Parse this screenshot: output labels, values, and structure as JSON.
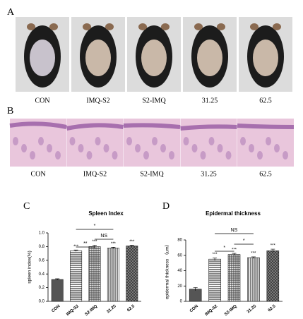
{
  "panel_a": {
    "label": "A",
    "groups": [
      "CON",
      "IMQ-S2",
      "S2-IMQ",
      "31.25",
      "62.5"
    ]
  },
  "panel_b": {
    "label": "B",
    "groups": [
      "CON",
      "IMQ-S2",
      "S2-IMQ",
      "31.25",
      "62.5"
    ]
  },
  "chart_data": [
    {
      "type": "bar",
      "panel": "C",
      "title": "Spleen Index",
      "ylabel": "spleen index(%)",
      "categories": [
        "CON",
        "IMQ-S2",
        "S2-IMQ",
        "31.25",
        "62.5"
      ],
      "values": [
        0.32,
        0.74,
        0.8,
        0.78,
        0.81
      ],
      "errors": [
        0.01,
        0.01,
        0.02,
        0.01,
        0.01
      ],
      "bar_labels": [
        null,
        "***",
        "***",
        "***",
        "***"
      ],
      "brackets": [
        {
          "label": "**"
        },
        {
          "label": "NS"
        },
        {
          "label": "*"
        }
      ],
      "color": "#555555",
      "ylim": [
        0,
        1.0
      ],
      "yticks": [
        {
          "value": 0,
          "label": "0.0"
        },
        {
          "value": 0.2,
          "label": "0.2"
        },
        {
          "value": 0.4,
          "label": "0.4"
        },
        {
          "value": 0.6,
          "label": "0.6"
        },
        {
          "value": 0.8,
          "label": "0.8"
        },
        {
          "value": 1.0,
          "label": "1.0"
        }
      ]
    },
    {
      "type": "bar",
      "panel": "D",
      "title": "Epidermal thickness",
      "ylabel": "epidermal thickness （um）",
      "categories": [
        "CON",
        "IMQ-S2",
        "S2-IMQ",
        "31.25",
        "62.5"
      ],
      "values": [
        16,
        55,
        61,
        57,
        66
      ],
      "errors": [
        2,
        1.5,
        1.5,
        1,
        2
      ],
      "bar_labels": [
        null,
        "***",
        "***",
        "***",
        "***"
      ],
      "brackets": [
        {
          "label": "*"
        },
        {
          "label": "*"
        },
        {
          "label": "NS"
        }
      ],
      "color": "#555555",
      "ylim": [
        0,
        80
      ],
      "yticks": [
        0,
        20,
        40,
        60,
        80
      ]
    }
  ]
}
